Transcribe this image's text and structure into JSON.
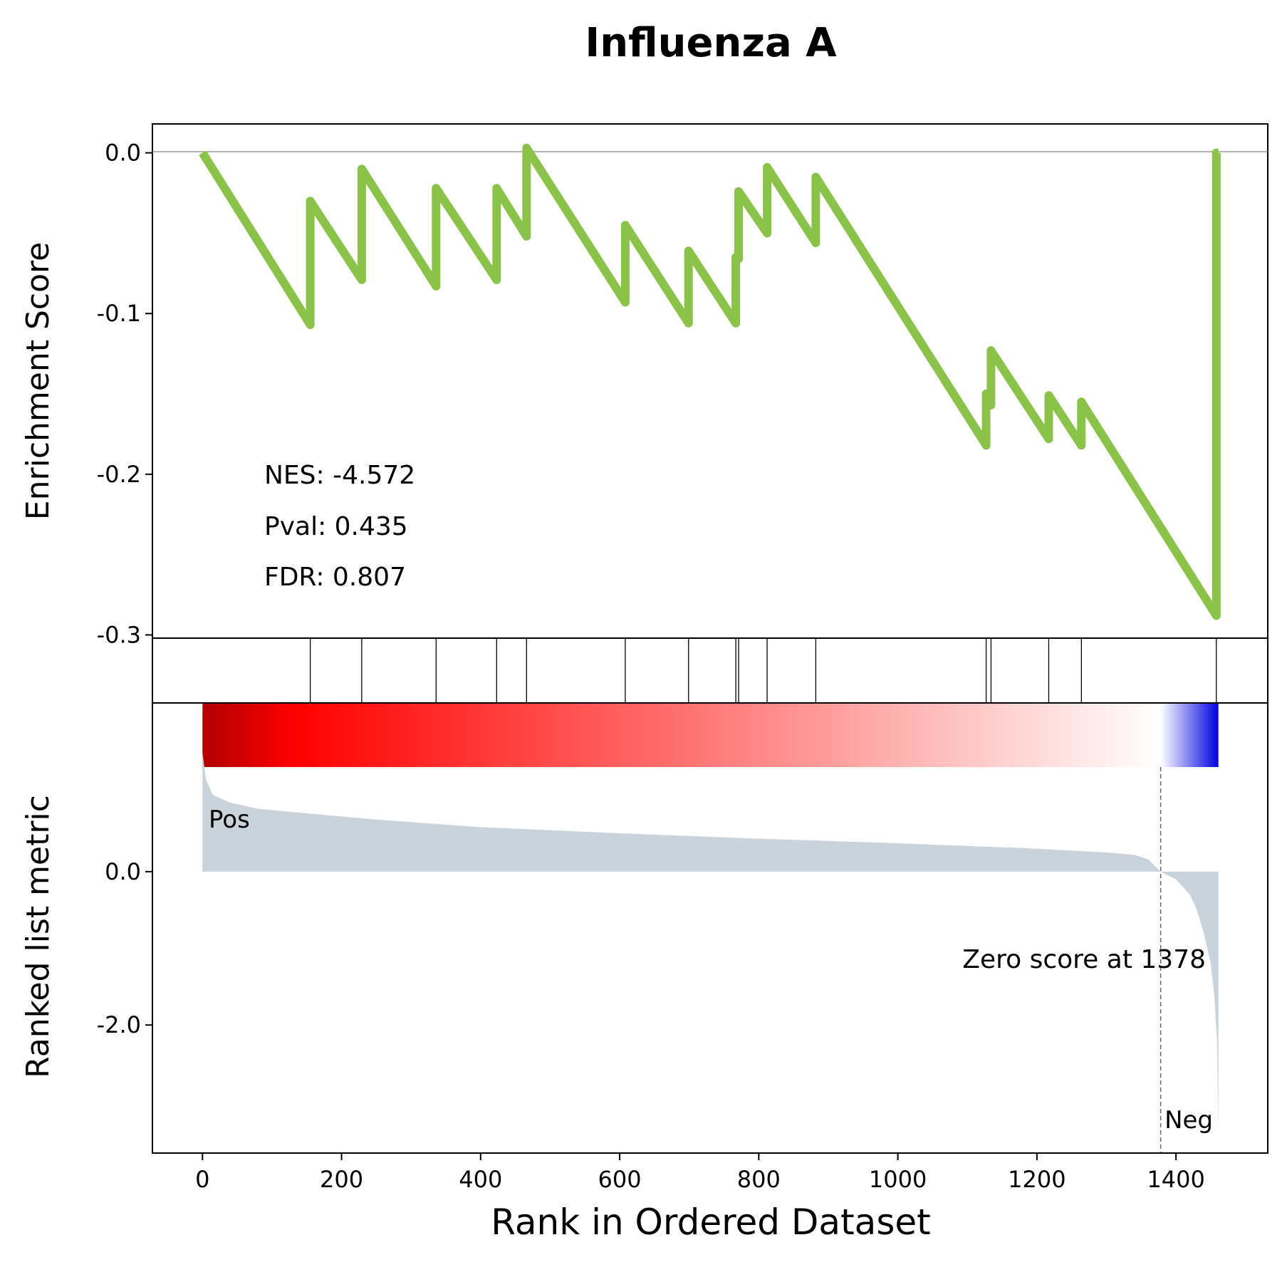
{
  "chart_data": {
    "type": "line",
    "title": "Influenza A",
    "xlabel": "Rank in Ordered Dataset",
    "xlim": [
      -72,
      1532
    ],
    "xticks": [
      0,
      200,
      400,
      600,
      800,
      1000,
      1200,
      1400
    ],
    "line_color": "#8bc34a",
    "es_panel": {
      "ylabel": "Enrichment Score",
      "ylim": [
        -0.302,
        0.018
      ],
      "yticks": [
        0.0,
        -0.1,
        -0.2,
        -0.3
      ],
      "ytick_labels": [
        "0.0",
        "-0.1",
        "-0.2",
        "-0.3"
      ],
      "running_es": [
        [
          0,
          0.0
        ],
        [
          155,
          -0.107
        ],
        [
          155,
          -0.03
        ],
        [
          229,
          -0.079
        ],
        [
          229,
          -0.01
        ],
        [
          336,
          -0.083
        ],
        [
          336,
          -0.022
        ],
        [
          423,
          -0.079
        ],
        [
          423,
          -0.022
        ],
        [
          466,
          -0.052
        ],
        [
          466,
          0.003
        ],
        [
          608,
          -0.093
        ],
        [
          608,
          -0.045
        ],
        [
          699,
          -0.106
        ],
        [
          699,
          -0.061
        ],
        [
          767,
          -0.106
        ],
        [
          767,
          -0.065
        ],
        [
          771,
          -0.066
        ],
        [
          771,
          -0.024
        ],
        [
          812,
          -0.05
        ],
        [
          812,
          -0.009
        ],
        [
          882,
          -0.056
        ],
        [
          882,
          -0.015
        ],
        [
          1127,
          -0.182
        ],
        [
          1127,
          -0.15
        ],
        [
          1134,
          -0.157
        ],
        [
          1134,
          -0.123
        ],
        [
          1217,
          -0.178
        ],
        [
          1217,
          -0.151
        ],
        [
          1264,
          -0.182
        ],
        [
          1264,
          -0.155
        ],
        [
          1458,
          -0.288
        ],
        [
          1458,
          0.0
        ],
        [
          1461,
          0.0
        ]
      ],
      "stats": {
        "nes": "NES: -4.572",
        "pval": "Pval: 0.435",
        "fdr": "FDR: 0.807"
      }
    },
    "hits": [
      155,
      229,
      336,
      423,
      466,
      608,
      699,
      767,
      771,
      812,
      882,
      1127,
      1134,
      1217,
      1264,
      1458
    ],
    "heatmap": {
      "x_range": [
        0,
        1461
      ],
      "zero_at": 1378,
      "colors": [
        "#b00000",
        "#ff0000",
        "#ff7f7f",
        "#ffffff",
        "#0000e0"
      ]
    },
    "metric_panel": {
      "ylabel": "Ranked list metric",
      "ylim": [
        -3.67,
        2.2
      ],
      "yticks": [
        0.0,
        -2.0
      ],
      "ytick_labels": [
        "0.0",
        "-2.0"
      ],
      "fill_color": "#c8d3dc",
      "metric_curve": [
        [
          0,
          1.55
        ],
        [
          5,
          1.2
        ],
        [
          15,
          1.0
        ],
        [
          40,
          0.9
        ],
        [
          80,
          0.82
        ],
        [
          150,
          0.76
        ],
        [
          250,
          0.68
        ],
        [
          400,
          0.58
        ],
        [
          600,
          0.5
        ],
        [
          800,
          0.43
        ],
        [
          1000,
          0.37
        ],
        [
          1200,
          0.3
        ],
        [
          1300,
          0.25
        ],
        [
          1340,
          0.22
        ],
        [
          1360,
          0.16
        ],
        [
          1378,
          0.0
        ],
        [
          1400,
          -0.1
        ],
        [
          1420,
          -0.3
        ],
        [
          1430,
          -0.5
        ],
        [
          1440,
          -0.8
        ],
        [
          1450,
          -1.2
        ],
        [
          1455,
          -1.6
        ],
        [
          1459,
          -2.2
        ],
        [
          1461,
          -3.4
        ]
      ],
      "zero_score_label": "Zero score at 1378",
      "pos_label": "Pos",
      "neg_label": "Neg",
      "pos_color": "#ff0000",
      "neg_color": "#0000ff"
    }
  }
}
